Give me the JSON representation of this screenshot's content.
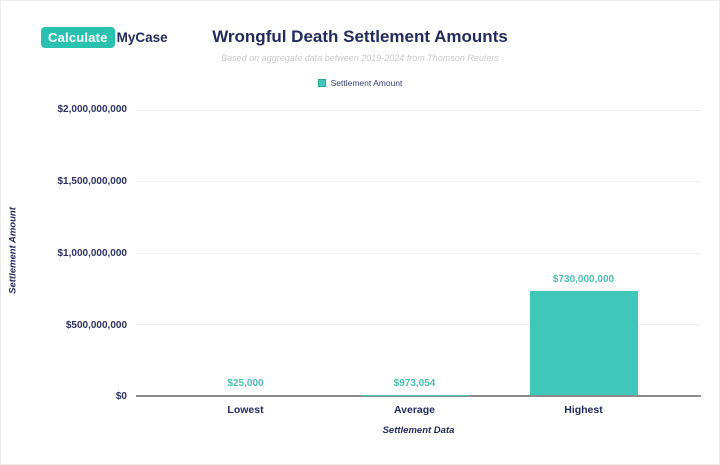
{
  "brand": {
    "logo_primary": "Calculate",
    "logo_secondary": "MyCase",
    "logo_box_color": "#29c2b1",
    "logo_text_color": "#232b5c"
  },
  "header": {
    "title": "Wrongful Death Settlement Amounts",
    "subtitle": "Based on aggregate data between 2019-2024 from Thomson Reuters"
  },
  "legend": {
    "label": "Settlement Amount",
    "swatch_color": "#3fc8ba"
  },
  "chart_data": {
    "type": "bar",
    "title": "Wrongful Death Settlement Amounts",
    "subtitle": "Based on aggregate data between 2019-2024 from Thomson Reuters",
    "series_name": "Settlement Amount",
    "categories": [
      "Lowest",
      "Average",
      "Highest"
    ],
    "values": [
      25000,
      973054,
      730000000
    ],
    "value_labels": [
      "$25,000",
      "$973,054",
      "$730,000,000"
    ],
    "xlabel": "Settlement Data",
    "ylabel": "Settlement Amount",
    "ylim": [
      0,
      2000000000
    ],
    "yticks": [
      "$2,000,000,000",
      "$1,500,000,000",
      "$1,000,000,000",
      "$500,000,000",
      "$0"
    ],
    "grid": true,
    "legend_position": "top",
    "bar_color": "#3fc8ba",
    "value_label_color": "#4cbcb2",
    "axis_text_color": "#232b5c",
    "gridline_color": "#efefef"
  }
}
